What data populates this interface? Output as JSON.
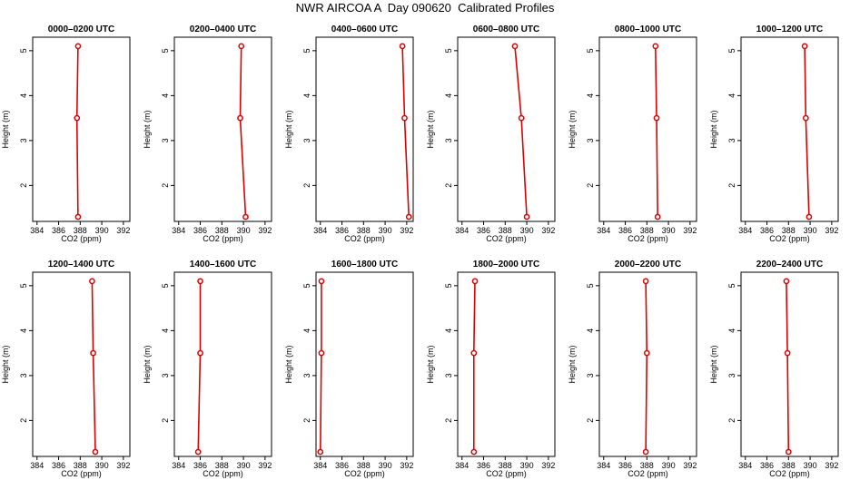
{
  "title": "NWR AIRCOA A  Day 090620  Calibrated Profiles",
  "colors": {
    "series": "#dd0000",
    "axis": "#000000"
  },
  "chart_data": [
    {
      "type": "line",
      "title": "0000–0200 UTC",
      "xlabel": "CO2 (ppm)",
      "ylabel": "Height (m)",
      "xlim": [
        383.6,
        392.6
      ],
      "ylim": [
        1.2,
        5.3
      ],
      "xticks": [
        384,
        386,
        388,
        390,
        392
      ],
      "yticks": [
        2,
        3,
        4,
        5
      ],
      "x": [
        387.8,
        387.7,
        387.8
      ],
      "y": [
        1.3,
        3.5,
        5.1
      ]
    },
    {
      "type": "line",
      "title": "0200–0400 UTC",
      "xlabel": "CO2 (ppm)",
      "ylabel": "Height (m)",
      "xlim": [
        383.6,
        392.6
      ],
      "ylim": [
        1.2,
        5.3
      ],
      "xticks": [
        384,
        386,
        388,
        390,
        392
      ],
      "yticks": [
        2,
        3,
        4,
        5
      ],
      "x": [
        390.2,
        389.7,
        389.8
      ],
      "y": [
        1.3,
        3.5,
        5.1
      ]
    },
    {
      "type": "line",
      "title": "0400–0600 UTC",
      "xlabel": "CO2 (ppm)",
      "ylabel": "Height (m)",
      "xlim": [
        383.6,
        392.6
      ],
      "ylim": [
        1.2,
        5.3
      ],
      "xticks": [
        384,
        386,
        388,
        390,
        392
      ],
      "yticks": [
        2,
        3,
        4,
        5
      ],
      "x": [
        392.2,
        391.8,
        391.6
      ],
      "y": [
        1.3,
        3.5,
        5.1
      ]
    },
    {
      "type": "line",
      "title": "0600–0800 UTC",
      "xlabel": "CO2 (ppm)",
      "ylabel": "Height (m)",
      "xlim": [
        383.6,
        392.6
      ],
      "ylim": [
        1.2,
        5.3
      ],
      "xticks": [
        384,
        386,
        388,
        390,
        392
      ],
      "yticks": [
        2,
        3,
        4,
        5
      ],
      "x": [
        390.0,
        389.5,
        388.9
      ],
      "y": [
        1.3,
        3.5,
        5.1
      ]
    },
    {
      "type": "line",
      "title": "0800–1000 UTC",
      "xlabel": "CO2 (ppm)",
      "ylabel": "Height (m)",
      "xlim": [
        383.6,
        392.6
      ],
      "ylim": [
        1.2,
        5.3
      ],
      "xticks": [
        384,
        386,
        388,
        390,
        392
      ],
      "yticks": [
        2,
        3,
        4,
        5
      ],
      "x": [
        389.0,
        388.9,
        388.8
      ],
      "y": [
        1.3,
        3.5,
        5.1
      ]
    },
    {
      "type": "line",
      "title": "1000–1200 UTC",
      "xlabel": "CO2 (ppm)",
      "ylabel": "Height (m)",
      "xlim": [
        383.6,
        392.6
      ],
      "ylim": [
        1.2,
        5.3
      ],
      "xticks": [
        384,
        386,
        388,
        390,
        392
      ],
      "yticks": [
        2,
        3,
        4,
        5
      ],
      "x": [
        389.9,
        389.6,
        389.5
      ],
      "y": [
        1.3,
        3.5,
        5.1
      ]
    },
    {
      "type": "line",
      "title": "1200–1400 UTC",
      "xlabel": "CO2 (ppm)",
      "ylabel": "Height (m)",
      "xlim": [
        383.6,
        392.6
      ],
      "ylim": [
        1.2,
        5.3
      ],
      "xticks": [
        384,
        386,
        388,
        390,
        392
      ],
      "yticks": [
        2,
        3,
        4,
        5
      ],
      "x": [
        389.4,
        389.2,
        389.1
      ],
      "y": [
        1.3,
        3.5,
        5.1
      ]
    },
    {
      "type": "line",
      "title": "1400–1600 UTC",
      "xlabel": "CO2 (ppm)",
      "ylabel": "Height (m)",
      "xlim": [
        383.6,
        392.6
      ],
      "ylim": [
        1.2,
        5.3
      ],
      "xticks": [
        384,
        386,
        388,
        390,
        392
      ],
      "yticks": [
        2,
        3,
        4,
        5
      ],
      "x": [
        385.8,
        386.0,
        386.0
      ],
      "y": [
        1.3,
        3.5,
        5.1
      ]
    },
    {
      "type": "line",
      "title": "1600–1800 UTC",
      "xlabel": "CO2 (ppm)",
      "ylabel": "Height (m)",
      "xlim": [
        383.6,
        392.6
      ],
      "ylim": [
        1.2,
        5.3
      ],
      "xticks": [
        384,
        386,
        388,
        390,
        392
      ],
      "yticks": [
        2,
        3,
        4,
        5
      ],
      "x": [
        384.0,
        384.1,
        384.1
      ],
      "y": [
        1.3,
        3.5,
        5.1
      ]
    },
    {
      "type": "line",
      "title": "1800–2000 UTC",
      "xlabel": "CO2 (ppm)",
      "ylabel": "Height (m)",
      "xlim": [
        383.6,
        392.6
      ],
      "ylim": [
        1.2,
        5.3
      ],
      "xticks": [
        384,
        386,
        388,
        390,
        392
      ],
      "yticks": [
        2,
        3,
        4,
        5
      ],
      "x": [
        385.1,
        385.1,
        385.2
      ],
      "y": [
        1.3,
        3.5,
        5.1
      ]
    },
    {
      "type": "line",
      "title": "2000–2200 UTC",
      "xlabel": "CO2 (ppm)",
      "ylabel": "Height (m)",
      "xlim": [
        383.6,
        392.6
      ],
      "ylim": [
        1.2,
        5.3
      ],
      "xticks": [
        384,
        386,
        388,
        390,
        392
      ],
      "yticks": [
        2,
        3,
        4,
        5
      ],
      "x": [
        387.9,
        388.0,
        387.9
      ],
      "y": [
        1.3,
        3.5,
        5.1
      ]
    },
    {
      "type": "line",
      "title": "2200–2400 UTC",
      "xlabel": "CO2 (ppm)",
      "ylabel": "Height (m)",
      "xlim": [
        383.6,
        392.6
      ],
      "ylim": [
        1.2,
        5.3
      ],
      "xticks": [
        384,
        386,
        388,
        390,
        392
      ],
      "yticks": [
        2,
        3,
        4,
        5
      ],
      "x": [
        388.0,
        387.9,
        387.8
      ],
      "y": [
        1.3,
        3.5,
        5.1
      ]
    }
  ]
}
